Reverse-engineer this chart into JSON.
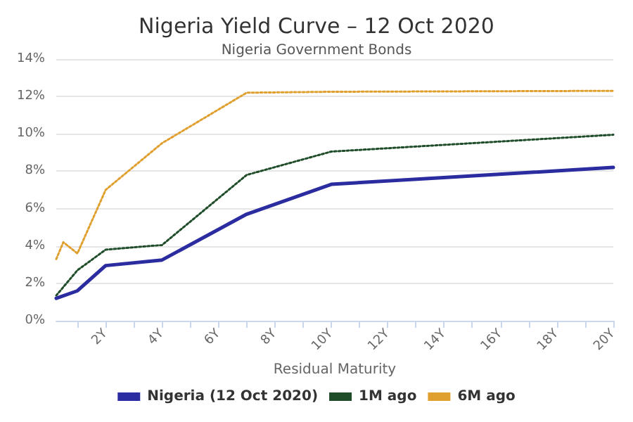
{
  "chart_data": {
    "type": "line",
    "title": "Nigeria Yield Curve – 12 Oct 2020",
    "subtitle": "Nigeria Government Bonds",
    "xlabel": "Residual Maturity",
    "xlim": [
      0.25,
      20
    ],
    "xticks": [
      {
        "value": 1,
        "label": null
      },
      {
        "value": 2,
        "label": "2Y"
      },
      {
        "value": 3,
        "label": null
      },
      {
        "value": 4,
        "label": "4Y"
      },
      {
        "value": 5,
        "label": null
      },
      {
        "value": 6,
        "label": "6Y"
      },
      {
        "value": 7,
        "label": null
      },
      {
        "value": 8,
        "label": "8Y"
      },
      {
        "value": 9,
        "label": null
      },
      {
        "value": 10,
        "label": "10Y"
      },
      {
        "value": 11,
        "label": null
      },
      {
        "value": 12,
        "label": "12Y"
      },
      {
        "value": 13,
        "label": null
      },
      {
        "value": 14,
        "label": "14Y"
      },
      {
        "value": 15,
        "label": null
      },
      {
        "value": 16,
        "label": "16Y"
      },
      {
        "value": 17,
        "label": null
      },
      {
        "value": 18,
        "label": "18Y"
      },
      {
        "value": 19,
        "label": null
      },
      {
        "value": 20,
        "label": "20Y"
      }
    ],
    "ylim": [
      0,
      14
    ],
    "yticks": [
      {
        "value": 0,
        "label": "0%"
      },
      {
        "value": 2,
        "label": "2%"
      },
      {
        "value": 4,
        "label": "4%"
      },
      {
        "value": 6,
        "label": "6%"
      },
      {
        "value": 8,
        "label": "8%"
      },
      {
        "value": 10,
        "label": "10%"
      },
      {
        "value": 12,
        "label": "12%"
      },
      {
        "value": 14,
        "label": "14%"
      }
    ],
    "grid": "y",
    "legend": "bottom",
    "marker": "none",
    "series": [
      {
        "name": "Nigeria (12 Oct 2020)",
        "color": "#2b2ca0",
        "line_style": "solid",
        "x": [
          0.25,
          1,
          2,
          4,
          7,
          10,
          20
        ],
        "values": [
          1.2,
          1.6,
          2.95,
          3.25,
          5.7,
          7.3,
          8.2
        ]
      },
      {
        "name": "1M ago",
        "color": "#1f4d2a",
        "line_style": "dotted",
        "x": [
          0.25,
          1,
          2,
          4,
          7,
          10,
          20
        ],
        "values": [
          1.35,
          2.7,
          3.8,
          4.05,
          7.8,
          9.05,
          9.95
        ]
      },
      {
        "name": "6M ago",
        "color": "#e0a030",
        "line_style": "dotted",
        "x": [
          0.25,
          0.5,
          1,
          2,
          4,
          7,
          10,
          20
        ],
        "values": [
          3.3,
          4.2,
          3.6,
          7.0,
          9.5,
          12.2,
          12.25,
          12.3
        ]
      }
    ]
  }
}
